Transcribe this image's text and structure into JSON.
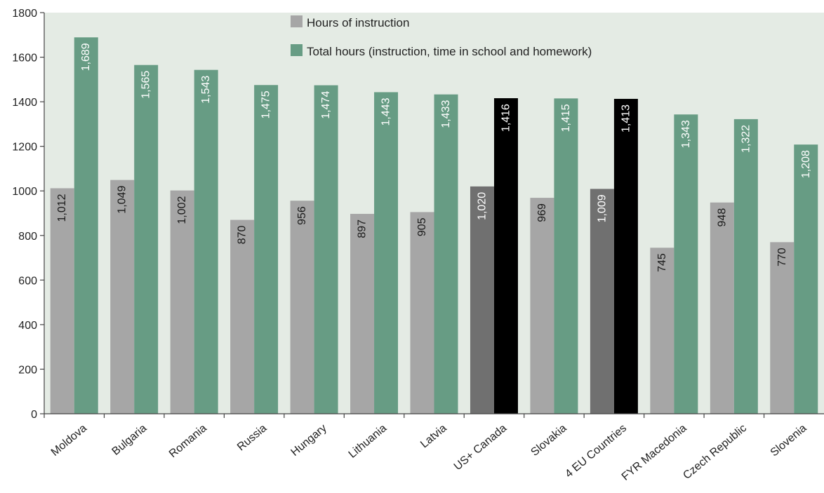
{
  "chart_data": {
    "type": "bar",
    "categories": [
      "Moldova",
      "Bulgaria",
      "Romania",
      "Russia",
      "Hungary",
      "Lithuania",
      "Latvia",
      "US+ Canada",
      "Slovakia",
      "4 EU Countries",
      "FYR Macedonia",
      "Czech Republic",
      "Slovenia"
    ],
    "series": [
      {
        "name": "Hours of instruction",
        "values": [
          1012,
          1049,
          1002,
          870,
          956,
          897,
          905,
          1020,
          969,
          1009,
          745,
          948,
          770
        ],
        "labels": [
          "1,012",
          "1,049",
          "1,002",
          "870",
          "956",
          "897",
          "905",
          "1,020",
          "969",
          "1,009",
          "745",
          "948",
          "770"
        ],
        "color": "#a6a6a6"
      },
      {
        "name": "Total hours (instruction, time in school and homework)",
        "values": [
          1689,
          1565,
          1543,
          1475,
          1474,
          1443,
          1433,
          1416,
          1415,
          1413,
          1343,
          1322,
          1208
        ],
        "labels": [
          "1,689",
          "1,565",
          "1,543",
          "1,475",
          "1,474",
          "1,443",
          "1,433",
          "1,416",
          "1,415",
          "1,413",
          "1,343",
          "1,322",
          "1,208"
        ],
        "color": "#679c84"
      }
    ],
    "highlight_categories": [
      "US+ Canada",
      "4 EU Countries"
    ],
    "highlight_colors": {
      "Hours of instruction": "#707070",
      "Total hours (instruction, time in school and homework)": "#000000"
    },
    "ylim": [
      0,
      1800
    ],
    "yticks": [
      0,
      200,
      400,
      600,
      800,
      1000,
      1200,
      1400,
      1600,
      1800
    ],
    "xlabel": "",
    "ylabel": "",
    "title": "",
    "grid": false,
    "legend_position": "top-center",
    "plot_background": "#e4ebe4"
  }
}
